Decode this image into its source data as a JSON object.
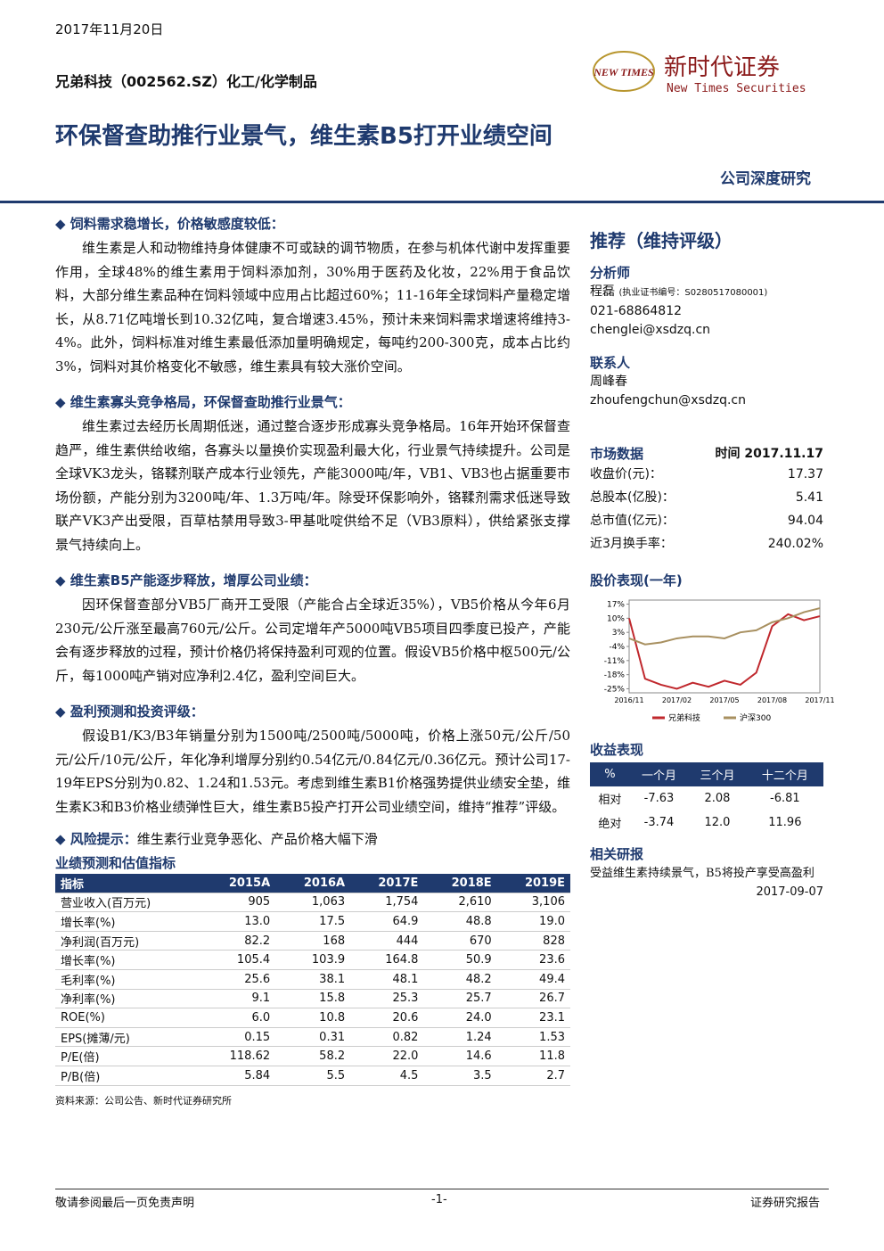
{
  "header": {
    "date": "2017年11月20日",
    "company": "兄弟科技（002562.SZ）化工/化学制品",
    "logo_mark": "NEW TIMES",
    "logo_cn": "新时代证券",
    "logo_en": "New Times Securities",
    "title": "环保督查助推行业景气，维生素B5打开业绩空间",
    "report_type": "公司深度研究"
  },
  "sections": [
    {
      "heading": "饲料需求稳增长，价格敏感度较低：",
      "paragraph": "维生素是人和动物维持身体健康不可或缺的调节物质，在参与机体代谢中发挥重要作用，全球48%的维生素用于饲料添加剂，30%用于医药及化妆，22%用于食品饮料，大部分维生素品种在饲料领域中应用占比超过60%；11-16年全球饲料产量稳定增长，从8.71亿吨增长到10.32亿吨，复合增速3.45%，预计未来饲料需求增速将维持3-4%。此外，饲料标准对维生素最低添加量明确规定，每吨约200-300克，成本占比约3%，饲料对其价格变化不敏感，维生素具有较大涨价空间。"
    },
    {
      "heading": "维生素寡头竞争格局，环保督查助推行业景气：",
      "paragraph": "维生素过去经历长周期低迷，通过整合逐步形成寡头竞争格局。16年开始环保督查趋严，维生素供给收缩，各寡头以量换价实现盈利最大化，行业景气持续提升。公司是全球VK3龙头，铬鞣剂联产成本行业领先，产能3000吨/年，VB1、VB3也占据重要市场份额，产能分别为3200吨/年、1.3万吨/年。除受环保影响外，铬鞣剂需求低迷导致联产VK3产出受限，百草枯禁用导致3-甲基吡啶供给不足（VB3原料），供给紧张支撑景气持续向上。"
    },
    {
      "heading": "维生素B5产能逐步释放，增厚公司业绩：",
      "paragraph": "因环保督查部分VB5厂商开工受限（产能合占全球近35%），VB5价格从今年6月230元/公斤涨至最高760元/公斤。公司定增年产5000吨VB5项目四季度已投产，产能会有逐步释放的过程，预计价格仍将保持盈利可观的位置。假设VB5价格中枢500元/公斤，每1000吨产销对应净利2.4亿，盈利空间巨大。"
    },
    {
      "heading": "盈利预测和投资评级：",
      "paragraph": "假设B1/K3/B3年销量分别为1500吨/2500吨/5000吨，价格上涨50元/公斤/50元/公斤/10元/公斤，年化净利增厚分别约0.54亿元/0.84亿元/0.36亿元。预计公司17-19年EPS分别为0.82、1.24和1.53元。考虑到维生素B1价格强势提供业绩安全垫，维生素K3和B3价格业绩弹性巨大，维生素B5投产打开公司业绩空间，维持“推荐”评级。"
    }
  ],
  "risk": {
    "label": "风险提示：",
    "text": "维生素行业竞争恶化、产品价格大幅下滑"
  },
  "forecast_table": {
    "title": "业绩预测和估值指标",
    "header": [
      "指标",
      "2015A",
      "2016A",
      "2017E",
      "2018E",
      "2019E"
    ],
    "rows": [
      [
        "营业收入(百万元)",
        "905",
        "1,063",
        "1,754",
        "2,610",
        "3,106"
      ],
      [
        "增长率(%)",
        "13.0",
        "17.5",
        "64.9",
        "48.8",
        "19.0"
      ],
      [
        "净利润(百万元)",
        "82.2",
        "168",
        "444",
        "670",
        "828"
      ],
      [
        "增长率(%)",
        "105.4",
        "103.9",
        "164.8",
        "50.9",
        "23.6"
      ],
      [
        "毛利率(%)",
        "25.6",
        "38.1",
        "48.1",
        "48.2",
        "49.4"
      ],
      [
        "净利率(%)",
        "9.1",
        "15.8",
        "25.3",
        "25.7",
        "26.7"
      ],
      [
        "ROE(%)",
        "6.0",
        "10.8",
        "20.6",
        "24.0",
        "23.1"
      ],
      [
        "EPS(摊薄/元)",
        "0.15",
        "0.31",
        "0.82",
        "1.24",
        "1.53"
      ],
      [
        "P/E(倍)",
        "118.62",
        "58.2",
        "22.0",
        "14.6",
        "11.8"
      ],
      [
        "P/B(倍)",
        "5.84",
        "5.5",
        "4.5",
        "3.5",
        "2.7"
      ]
    ],
    "source": "资料来源：公司公告、新时代证券研究所"
  },
  "rating": "推荐（维持评级）",
  "analyst": {
    "heading": "分析师",
    "name": "程磊",
    "cert": "(执业证书编号：S0280517080001)",
    "phone": "021-68864812",
    "email": "chenglei@xsdzq.cn"
  },
  "contact": {
    "heading": "联系人",
    "name": "周峰春",
    "email": "zhoufengchun@xsdzq.cn"
  },
  "market": {
    "heading": "市场数据",
    "time": "时间 2017.11.17",
    "rows": [
      [
        "收盘价(元)：",
        "17.37"
      ],
      [
        "总股本(亿股)：",
        "5.41"
      ],
      [
        "总市值(亿元)：",
        "94.04"
      ],
      [
        "近3月换手率：",
        "240.02%"
      ]
    ]
  },
  "stock_chart": {
    "heading": "股价表现(一年)",
    "chart_data": {
      "type": "line",
      "categories": [
        "2016/11",
        null,
        null,
        "2017/02",
        null,
        null,
        "2017/05",
        null,
        null,
        "2017/08",
        null,
        null,
        "2017/11"
      ],
      "series": [
        {
          "name": "兄弟科技",
          "color": "#c0282d",
          "values": [
            10,
            -20,
            -23,
            -25,
            -22,
            -24,
            -21,
            -23,
            -17,
            6,
            12,
            9,
            11
          ]
        },
        {
          "name": "沪深300",
          "color": "#a89060",
          "values": [
            0,
            -3,
            -2,
            0,
            1,
            1,
            0,
            3,
            4,
            8,
            10,
            13,
            15
          ]
        }
      ],
      "ylim": [
        -27,
        19
      ],
      "yticks": [
        {
          "value": 17,
          "label": "17%"
        },
        {
          "value": 10,
          "label": "10%"
        },
        {
          "value": 3,
          "label": "3%"
        },
        {
          "value": -4,
          "label": "-4%"
        },
        {
          "value": -11,
          "label": "-11%"
        },
        {
          "value": -18,
          "label": "-18%"
        },
        {
          "value": -25,
          "label": "-25%"
        }
      ]
    }
  },
  "returns": {
    "heading": "收益表现",
    "header": [
      "%",
      "一个月",
      "三个月",
      "十二个月"
    ],
    "rows": [
      [
        "相对",
        "-7.63",
        "2.08",
        "-6.81"
      ],
      [
        "绝对",
        "-3.74",
        "12.0",
        "11.96"
      ]
    ]
  },
  "related": {
    "heading": "相关研报",
    "title": "受益维生素持续景气，B5将投产享受高盈利",
    "date": "2017-09-07"
  },
  "footer": {
    "left": "敬请参阅最后一页免责声明",
    "center": "-1-",
    "right": "证券研究报告"
  }
}
